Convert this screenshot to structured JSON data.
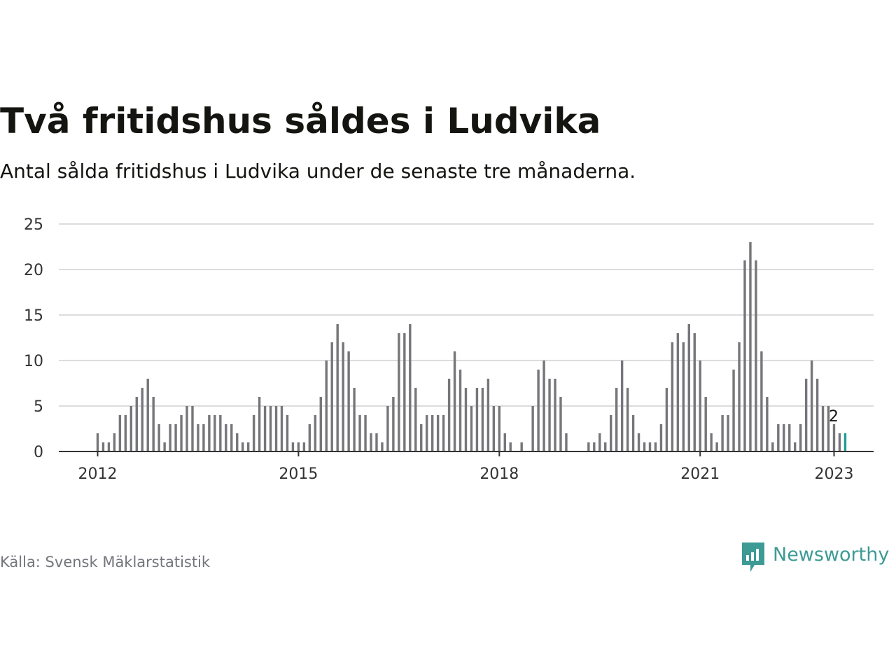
{
  "header": {
    "title": "Två fritidshus såldes i Ludvika",
    "subtitle": "Antal sålda fritidshus i Ludvika under de senaste tre månaderna."
  },
  "footer": {
    "source": "Källa: Svensk Mäklarstatistik",
    "brand": "Newsworthy"
  },
  "colors": {
    "bar": "#76767a",
    "highlight": "#1f9e96",
    "grid": "#dcdcdc",
    "axis": "#333333",
    "brand": "#3e9a94",
    "text": "#141410",
    "muted": "#74767c"
  },
  "icons": {
    "brand_logo": "newsworthy-bar-chart-bubble-icon"
  },
  "chart_data": {
    "type": "bar",
    "x_start": "2012-01",
    "x_end": "2023-01",
    "x_ticks": [
      "2012",
      "2015",
      "2018",
      "2021",
      "2023"
    ],
    "y_ticks": [
      "0",
      "5",
      "10",
      "15",
      "20",
      "25"
    ],
    "ylim": [
      0,
      25
    ],
    "grid": true,
    "values": [
      2,
      1,
      1,
      2,
      4,
      4,
      5,
      6,
      7,
      8,
      6,
      3,
      1,
      3,
      3,
      4,
      5,
      5,
      3,
      3,
      4,
      4,
      4,
      3,
      3,
      2,
      1,
      1,
      4,
      6,
      5,
      5,
      5,
      5,
      4,
      1,
      1,
      1,
      3,
      4,
      6,
      10,
      12,
      14,
      12,
      11,
      7,
      4,
      4,
      2,
      2,
      1,
      5,
      6,
      13,
      13,
      14,
      7,
      3,
      4,
      4,
      4,
      4,
      8,
      11,
      9,
      7,
      5,
      7,
      7,
      8,
      5,
      5,
      2,
      1,
      0,
      1,
      0,
      5,
      9,
      10,
      8,
      8,
      6,
      2,
      0,
      0,
      0,
      1,
      1,
      2,
      1,
      4,
      7,
      10,
      7,
      4,
      2,
      1,
      1,
      1,
      3,
      7,
      12,
      13,
      12,
      14,
      13,
      10,
      6,
      2,
      1,
      4,
      4,
      9,
      12,
      21,
      23,
      21,
      11,
      6,
      1,
      3,
      3,
      3,
      1,
      3,
      8,
      10,
      8,
      5,
      5,
      3,
      2,
      2
    ],
    "highlight_label": "2"
  }
}
